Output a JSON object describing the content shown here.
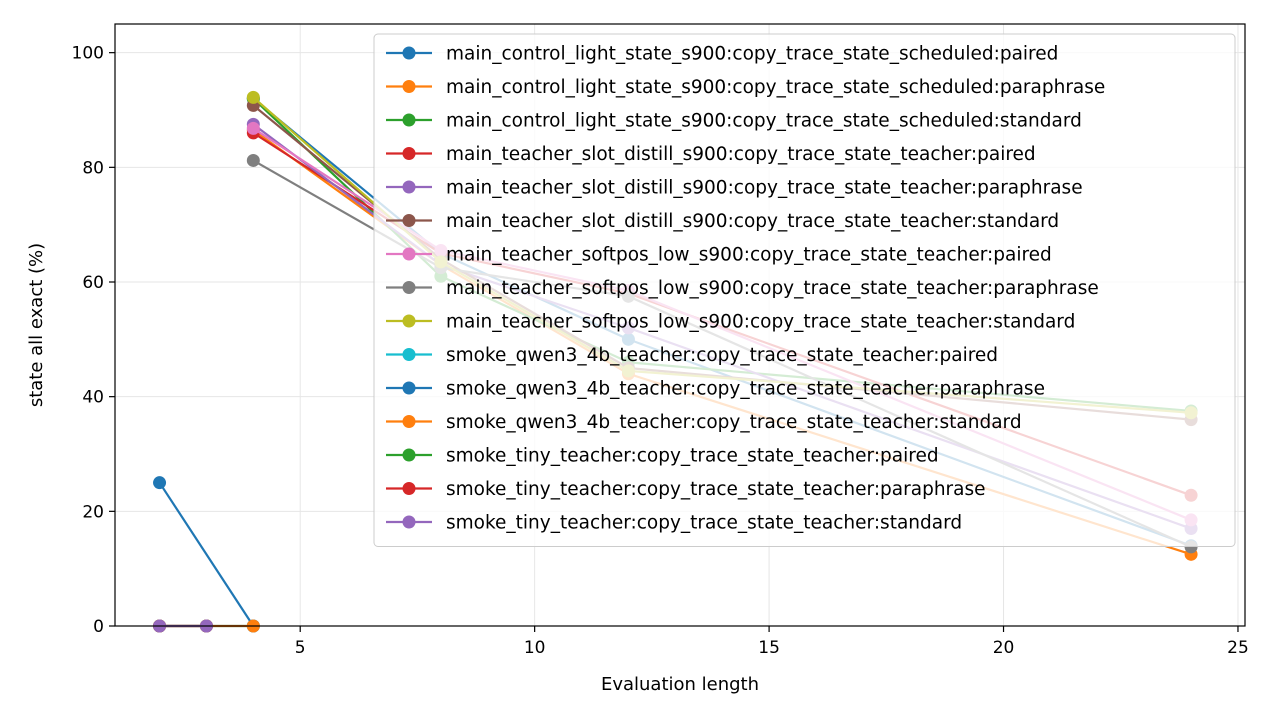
{
  "chart_data": {
    "type": "line",
    "title": "",
    "xlabel": "Evaluation length",
    "ylabel": "state all exact (%)",
    "xlim": [
      1.05,
      25.15
    ],
    "ylim": [
      0,
      105
    ],
    "xticks": [
      5,
      10,
      15,
      20,
      25
    ],
    "yticks": [
      0,
      20,
      40,
      60,
      80,
      100
    ],
    "grid": true,
    "legend_position": "upper-right",
    "series": [
      {
        "name": "main_control_light_state_s900:copy_trace_state_scheduled:paired",
        "color": "#1f77b4",
        "x": [
          4,
          8,
          12,
          24
        ],
        "y": [
          92.0,
          65.0,
          50.0,
          14.0
        ]
      },
      {
        "name": "main_control_light_state_s900:copy_trace_state_scheduled:paraphrase",
        "color": "#ff7f0e",
        "x": [
          4,
          8,
          12,
          24
        ],
        "y": [
          86.5,
          63.0,
          44.0,
          12.5
        ]
      },
      {
        "name": "main_control_light_state_s900:copy_trace_state_scheduled:standard",
        "color": "#2ca02c",
        "x": [
          4,
          8,
          12,
          24
        ],
        "y": [
          92.0,
          61.0,
          46.0,
          37.5
        ]
      },
      {
        "name": "main_teacher_slot_distill_s900:copy_trace_state_teacher:paired",
        "color": "#d62728",
        "x": [
          4,
          8,
          12,
          24
        ],
        "y": [
          86.0,
          65.0,
          58.0,
          22.8
        ]
      },
      {
        "name": "main_teacher_slot_distill_s900:copy_trace_state_teacher:paraphrase",
        "color": "#9467bd",
        "x": [
          4,
          8,
          12,
          24
        ],
        "y": [
          87.5,
          63.0,
          52.0,
          17.0
        ]
      },
      {
        "name": "main_teacher_slot_distill_s900:copy_trace_state_teacher:standard",
        "color": "#8c564b",
        "x": [
          4,
          8,
          12,
          24
        ],
        "y": [
          90.8,
          64.0,
          45.0,
          36.0
        ]
      },
      {
        "name": "main_teacher_softpos_low_s900:copy_trace_state_teacher:paired",
        "color": "#e377c2",
        "x": [
          4,
          8,
          12,
          24
        ],
        "y": [
          86.8,
          65.5,
          58.5,
          18.5
        ]
      },
      {
        "name": "main_teacher_softpos_low_s900:copy_trace_state_teacher:paraphrase",
        "color": "#7f7f7f",
        "x": [
          4,
          8,
          12,
          24
        ],
        "y": [
          81.2,
          62.5,
          57.5,
          13.8
        ]
      },
      {
        "name": "main_teacher_softpos_low_s900:copy_trace_state_teacher:standard",
        "color": "#bcbd22",
        "x": [
          4,
          8,
          12,
          24
        ],
        "y": [
          92.2,
          63.5,
          44.5,
          37.2
        ]
      },
      {
        "name": "smoke_qwen3_4b_teacher:copy_trace_state_teacher:paired",
        "color": "#17becf",
        "x": [
          2,
          3,
          4
        ],
        "y": [
          0,
          0,
          0
        ]
      },
      {
        "name": "smoke_qwen3_4b_teacher:copy_trace_state_teacher:paraphrase",
        "color": "#1f77b4",
        "x": [
          2,
          4
        ],
        "y": [
          25,
          0
        ]
      },
      {
        "name": "smoke_qwen3_4b_teacher:copy_trace_state_teacher:standard",
        "color": "#ff7f0e",
        "x": [
          2,
          3,
          4
        ],
        "y": [
          0,
          0,
          0
        ]
      },
      {
        "name": "smoke_tiny_teacher:copy_trace_state_teacher:paired",
        "color": "#2ca02c",
        "x": [
          2,
          3
        ],
        "y": [
          0,
          0
        ]
      },
      {
        "name": "smoke_tiny_teacher:copy_trace_state_teacher:paraphrase",
        "color": "#d62728",
        "x": [
          2,
          3
        ],
        "y": [
          0,
          0
        ]
      },
      {
        "name": "smoke_tiny_teacher:copy_trace_state_teacher:standard",
        "color": "#9467bd",
        "x": [
          2,
          3
        ],
        "y": [
          0,
          0
        ]
      }
    ]
  }
}
